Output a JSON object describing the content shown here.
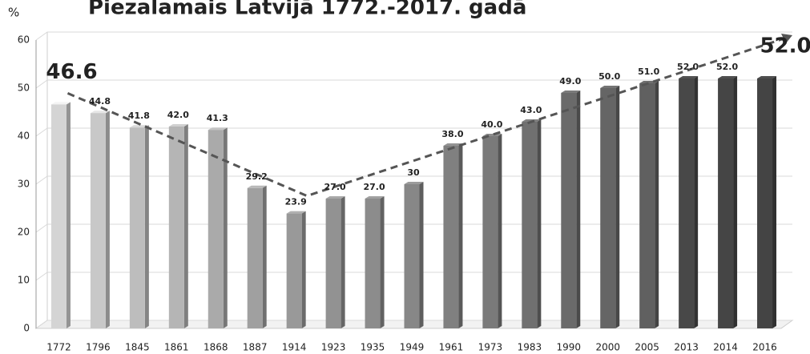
{
  "chart_data": {
    "type": "bar",
    "title": "Piezalamais Latvijā 1772.-2017. gadā",
    "y_axis_label": "%",
    "categories": [
      "1772",
      "1796",
      "1845",
      "1861",
      "1868",
      "1887",
      "1914",
      "1923",
      "1935",
      "1949",
      "1961",
      "1973",
      "1983",
      "1990",
      "2000",
      "2005",
      "2013",
      "2014",
      "2016"
    ],
    "values": [
      46.6,
      44.8,
      41.8,
      42.0,
      41.3,
      29.2,
      23.9,
      27.0,
      27.0,
      30,
      38.0,
      40.0,
      43.0,
      49.0,
      50.0,
      51.0,
      52.0,
      52.0,
      52.0
    ],
    "value_labels": [
      "46.6",
      "44.8",
      "41.8",
      "42.0",
      "41.3",
      "29.2",
      "23.9",
      "27.0",
      "27.0",
      "30",
      "38.0",
      "40.0",
      "43.0",
      "49.0",
      "50.0",
      "51.0",
      "52.0",
      "52.0",
      "52.0"
    ],
    "colors": [
      "#d4d4d4",
      "#c8c8c8",
      "#bdbdbd",
      "#b5b5b5",
      "#aaaaaa",
      "#a0a0a0",
      "#999999",
      "#929292",
      "#8c8c8c",
      "#878787",
      "#808080",
      "#7a7a7a",
      "#707070",
      "#6a6a6a",
      "#656565",
      "#606060",
      "#484848",
      "#454545",
      "#444444"
    ],
    "ylim": [
      0,
      60
    ],
    "yticks": [
      0,
      10,
      20,
      30,
      40,
      50,
      60
    ],
    "grid": true
  }
}
